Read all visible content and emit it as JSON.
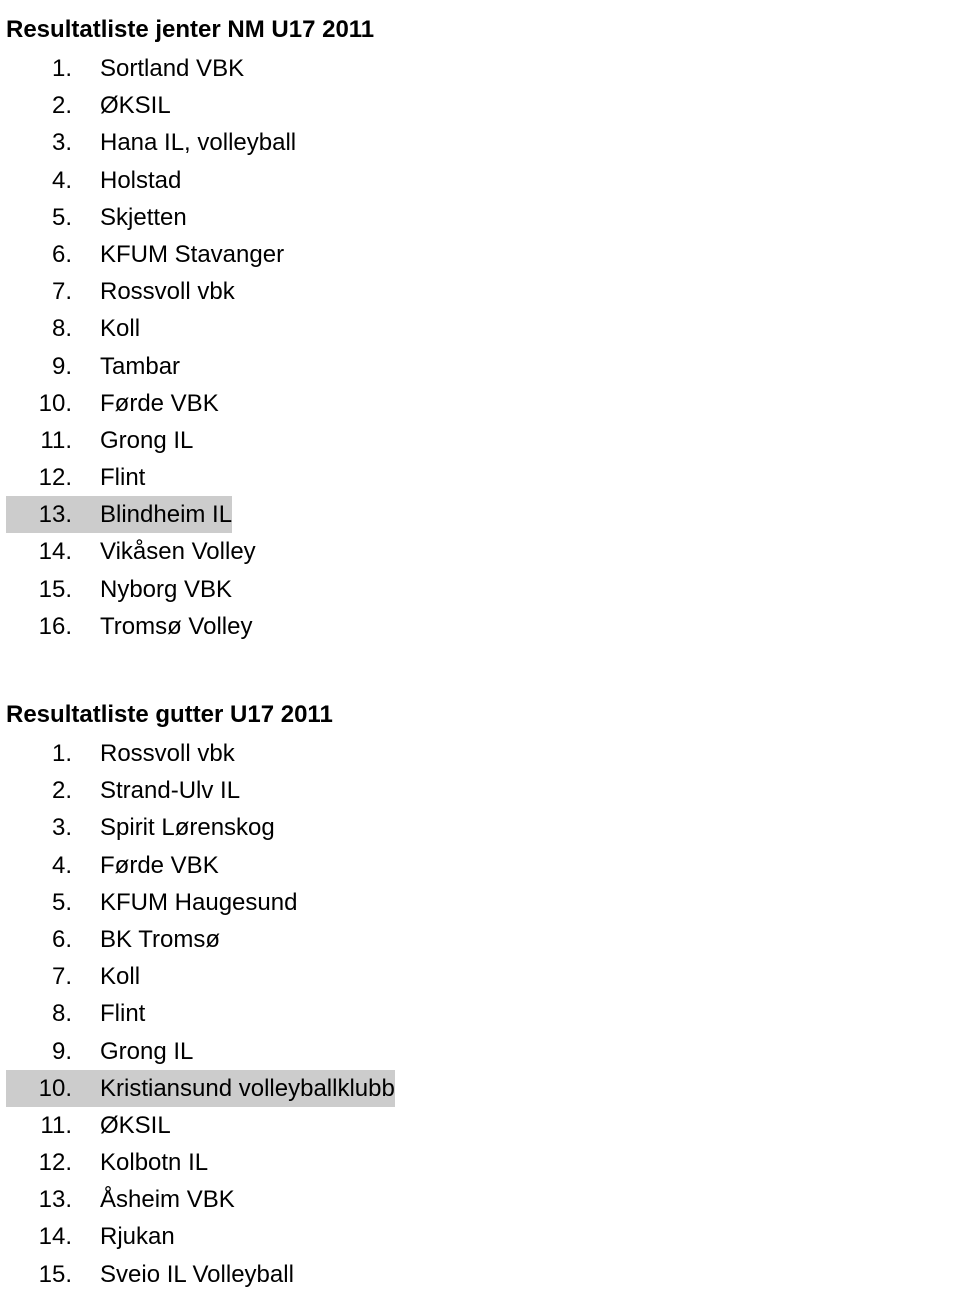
{
  "text_color": "#000000",
  "background_color": "#ffffff",
  "highlight_color": "#cccccc",
  "font_family": "Verdana",
  "title_fontsize": 24,
  "item_fontsize": 24,
  "sections": [
    {
      "title": "Resultatliste jenter NM U17 2011",
      "items": [
        {
          "num": "1.",
          "label": "Sortland VBK",
          "highlight": false
        },
        {
          "num": "2.",
          "label": "ØKSIL",
          "highlight": false
        },
        {
          "num": "3.",
          "label": "Hana IL, volleyball",
          "highlight": false
        },
        {
          "num": "4.",
          "label": "Holstad",
          "highlight": false
        },
        {
          "num": "5.",
          "label": "Skjetten",
          "highlight": false
        },
        {
          "num": "6.",
          "label": "KFUM Stavanger",
          "highlight": false
        },
        {
          "num": "7.",
          "label": "Rossvoll vbk",
          "highlight": false
        },
        {
          "num": "8.",
          "label": "Koll",
          "highlight": false
        },
        {
          "num": "9.",
          "label": "Tambar",
          "highlight": false
        },
        {
          "num": "10.",
          "label": "Førde VBK",
          "highlight": false
        },
        {
          "num": "11.",
          "label": "Grong IL",
          "highlight": false
        },
        {
          "num": "12.",
          "label": "Flint",
          "highlight": false
        },
        {
          "num": "13.",
          "label": "Blindheim IL",
          "highlight": true
        },
        {
          "num": "14.",
          "label": "Vikåsen Volley",
          "highlight": false
        },
        {
          "num": "15.",
          "label": "Nyborg VBK",
          "highlight": false
        },
        {
          "num": "16.",
          "label": "Tromsø Volley",
          "highlight": false
        }
      ]
    },
    {
      "title": "Resultatliste gutter U17 2011",
      "items": [
        {
          "num": "1.",
          "label": "Rossvoll vbk",
          "highlight": false
        },
        {
          "num": "2.",
          "label": "Strand-Ulv IL",
          "highlight": false
        },
        {
          "num": "3.",
          "label": "Spirit Lørenskog",
          "highlight": false
        },
        {
          "num": "4.",
          "label": "Førde VBK",
          "highlight": false
        },
        {
          "num": "5.",
          "label": "KFUM Haugesund",
          "highlight": false
        },
        {
          "num": "6.",
          "label": "BK Tromsø",
          "highlight": false
        },
        {
          "num": "7.",
          "label": "Koll",
          "highlight": false
        },
        {
          "num": "8.",
          "label": "Flint",
          "highlight": false
        },
        {
          "num": "9.",
          "label": "Grong IL",
          "highlight": false
        },
        {
          "num": "10.",
          "label": "Kristiansund volleyballklubb",
          "highlight": true
        },
        {
          "num": "11.",
          "label": "ØKSIL",
          "highlight": false
        },
        {
          "num": "12.",
          "label": "Kolbotn IL",
          "highlight": false
        },
        {
          "num": "13.",
          "label": "Åsheim VBK",
          "highlight": false
        },
        {
          "num": "14.",
          "label": "Rjukan",
          "highlight": false
        },
        {
          "num": "15.",
          "label": "Sveio IL Volleyball",
          "highlight": false
        }
      ]
    }
  ]
}
